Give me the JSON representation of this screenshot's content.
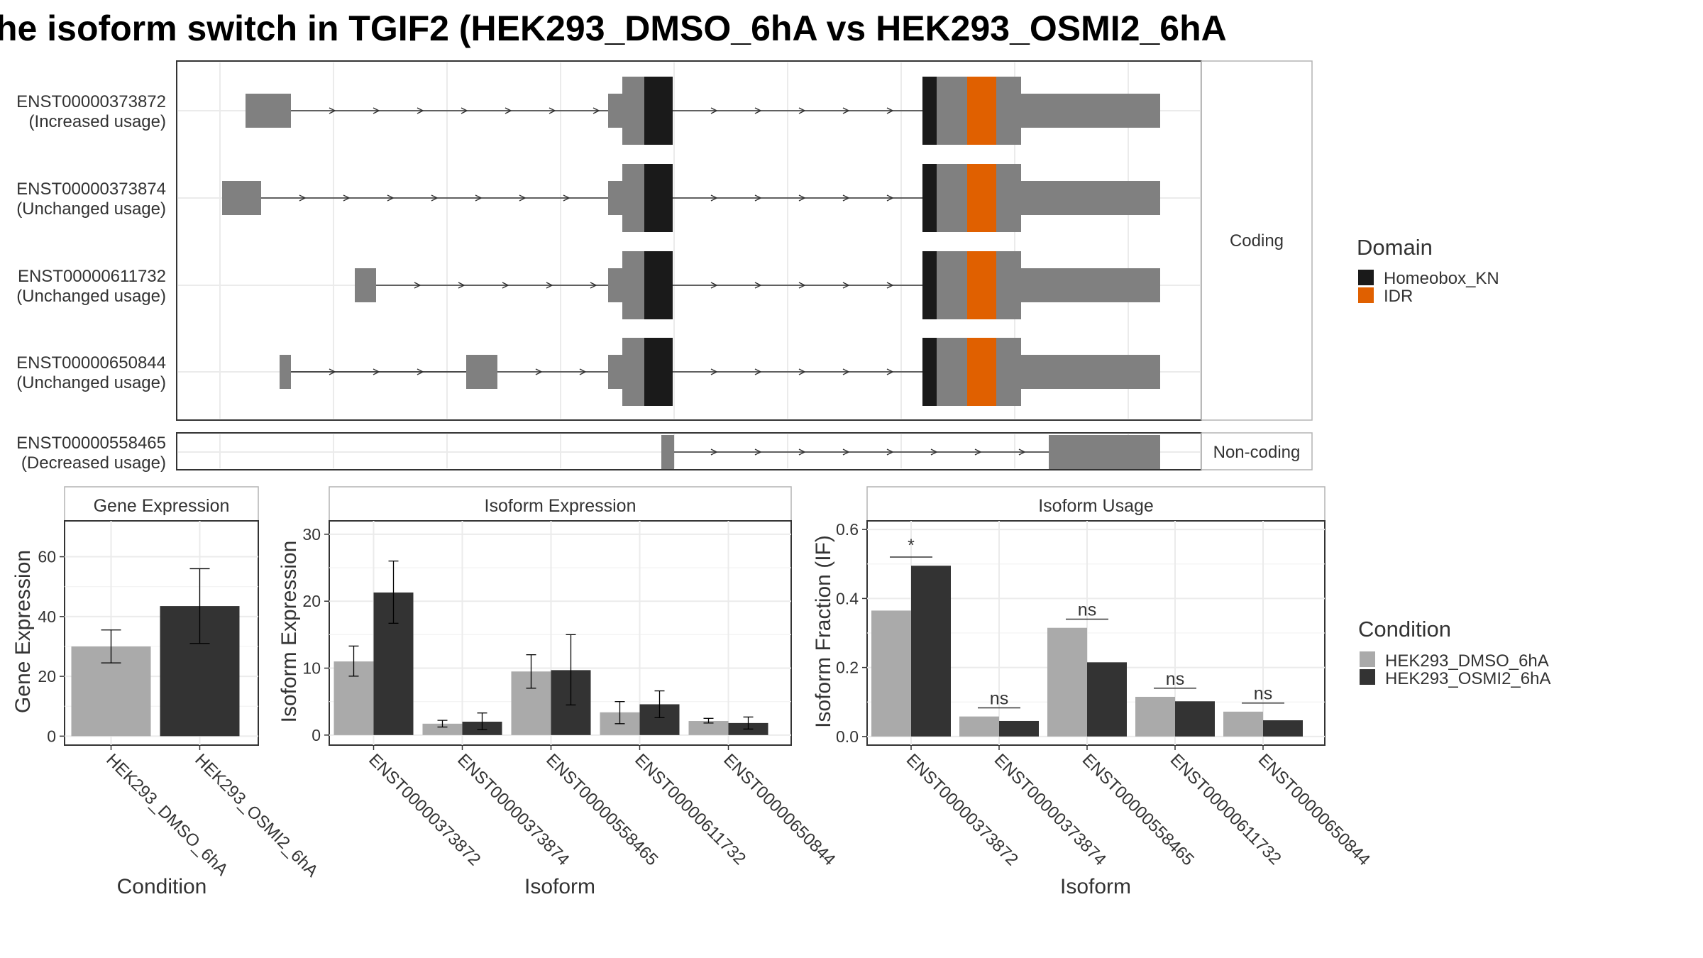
{
  "title": "he isoform switch in TGIF2 (HEK293_DMSO_6hA vs HEK293_OSMI2_6hA",
  "colors": {
    "exon": "#808080",
    "homeobox": "#1a1a1a",
    "idr": "#e06000",
    "cond1": "#aaaaaa",
    "cond2": "#333333",
    "grid": "#ebebeb",
    "intron": "#333333"
  },
  "structure": {
    "coding_label": "Coding",
    "noncoding_label": "Non-coding",
    "transcripts": [
      {
        "id": "ENST00000373872",
        "usage": "(Increased usage)",
        "group": "coding"
      },
      {
        "id": "ENST00000373874",
        "usage": "(Unchanged usage)",
        "group": "coding"
      },
      {
        "id": "ENST00000611732",
        "usage": "(Unchanged usage)",
        "group": "coding"
      },
      {
        "id": "ENST00000650844",
        "usage": "(Unchanged usage)",
        "group": "coding"
      },
      {
        "id": "ENST00000558465",
        "usage": "(Decreased usage)",
        "group": "noncoding"
      }
    ]
  },
  "legend_domain": {
    "title": "Domain",
    "items": [
      {
        "label": "Homeobox_KN",
        "color": "#1a1a1a"
      },
      {
        "label": "IDR",
        "color": "#e06000"
      }
    ]
  },
  "legend_condition": {
    "title": "Condition",
    "items": [
      {
        "label": "HEK293_DMSO_6hA",
        "color": "#aaaaaa"
      },
      {
        "label": "HEK293_OSMI2_6hA",
        "color": "#333333"
      }
    ]
  },
  "chart_data": [
    {
      "type": "bar",
      "title": "Gene Expression",
      "xlabel": "Condition",
      "ylabel": "Gene Expression",
      "ylim": [
        -3,
        72
      ],
      "yticks": [
        0,
        20,
        40,
        60
      ],
      "categories": [
        "HEK293_DMSO_6hA",
        "HEK293_OSMI2_6hA"
      ],
      "series": [
        {
          "name": "HEK293_DMSO_6hA",
          "values": [
            30,
            null
          ],
          "err_low": [
            24.5,
            null
          ],
          "err_high": [
            35.5,
            null
          ]
        },
        {
          "name": "HEK293_OSMI2_6hA",
          "values": [
            null,
            43.5
          ],
          "err_low": [
            null,
            31
          ],
          "err_high": [
            null,
            56
          ]
        }
      ]
    },
    {
      "type": "bar",
      "title": "Isoform Expression",
      "xlabel": "Isoform",
      "ylabel": "Isoform Expression",
      "ylim": [
        -1.5,
        32
      ],
      "yticks": [
        0,
        10,
        20,
        30
      ],
      "categories": [
        "ENST00000373872",
        "ENST00000373874",
        "ENST00000558465",
        "ENST00000611732",
        "ENST00000650844"
      ],
      "series": [
        {
          "name": "HEK293_DMSO_6hA",
          "values": [
            11,
            1.7,
            9.5,
            3.4,
            2.1
          ],
          "err_low": [
            8.8,
            1.2,
            7.0,
            1.7,
            1.8
          ],
          "err_high": [
            13.3,
            2.2,
            12.0,
            5.0,
            2.5
          ]
        },
        {
          "name": "HEK293_OSMI2_6hA",
          "values": [
            21.3,
            2.0,
            9.7,
            4.6,
            1.8
          ],
          "err_low": [
            16.7,
            0.8,
            4.5,
            2.6,
            0.9
          ],
          "err_high": [
            26.0,
            3.3,
            15.0,
            6.6,
            2.7
          ]
        }
      ]
    },
    {
      "type": "bar",
      "title": "Isoform Usage",
      "xlabel": "Isoform",
      "ylabel": "Isoform Fraction (IF)",
      "ylim": [
        -0.025,
        0.625
      ],
      "yticks": [
        0.0,
        0.2,
        0.4,
        0.6
      ],
      "ytick_labels": [
        "0.0",
        "0.2",
        "0.4",
        "0.6"
      ],
      "categories": [
        "ENST00000373872",
        "ENST00000373874",
        "ENST00000558465",
        "ENST00000611732",
        "ENST00000650844"
      ],
      "series": [
        {
          "name": "HEK293_DMSO_6hA",
          "values": [
            0.365,
            0.058,
            0.315,
            0.115,
            0.072
          ]
        },
        {
          "name": "HEK293_OSMI2_6hA",
          "values": [
            0.495,
            0.045,
            0.215,
            0.102,
            0.047
          ]
        }
      ],
      "annotations": [
        "*",
        "ns",
        "ns",
        "ns",
        "ns"
      ]
    }
  ]
}
